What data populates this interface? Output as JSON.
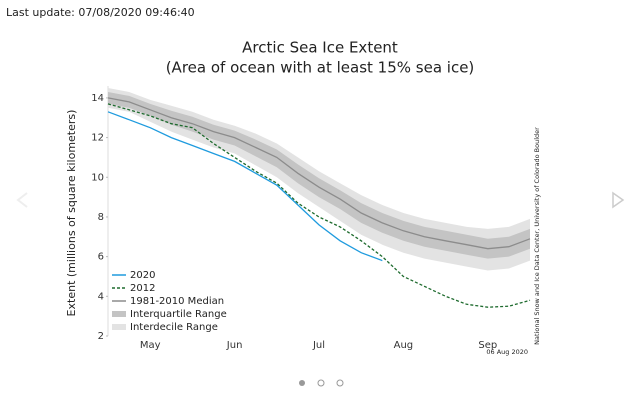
{
  "header": {
    "last_update": "Last update: 07/08/2020 09:46:40"
  },
  "chart_data": {
    "type": "line",
    "title": "Arctic Sea Ice Extent",
    "subtitle": "(Area of ocean with at least 15% sea ice)",
    "y_label": "Extent (millions of square kilometers)",
    "credit": "National Snow and Ice Data Center, University of Colorado Boulder",
    "date_stamp": "06 Aug 2020",
    "categories": [
      null,
      null,
      "May",
      null,
      null,
      null,
      "Jun",
      null,
      null,
      null,
      "Jul",
      null,
      null,
      null,
      "Aug",
      null,
      null,
      null,
      "Sep",
      null,
      null
    ],
    "ylim": [
      2,
      14.6
    ],
    "yticks": [
      2,
      4,
      6,
      8,
      10,
      12,
      14
    ],
    "grid": false,
    "legend": "lower-left",
    "series": [
      {
        "name": "2020",
        "color": "#1f9bde",
        "values": [
          13.3,
          12.9,
          12.5,
          12.0,
          11.6,
          11.2,
          10.8,
          10.2,
          9.6,
          8.6,
          7.6,
          6.8,
          6.2,
          5.8,
          null,
          null,
          null,
          null,
          null,
          null,
          null
        ]
      },
      {
        "name": "2012",
        "color": "#1e6b2e",
        "dashed": true,
        "values": [
          13.7,
          13.4,
          13.1,
          12.7,
          12.5,
          11.7,
          11.0,
          10.3,
          9.7,
          8.7,
          8.0,
          7.5,
          6.8,
          6.0,
          5.0,
          4.5,
          4.0,
          3.6,
          3.45,
          3.5,
          3.8
        ]
      },
      {
        "name": "1981-2010 Median",
        "color": "#8c8c8c",
        "values": [
          14.0,
          13.8,
          13.4,
          13.0,
          12.7,
          12.3,
          12.0,
          11.5,
          11.0,
          10.2,
          9.5,
          8.9,
          8.2,
          7.7,
          7.3,
          7.0,
          6.8,
          6.6,
          6.4,
          6.5,
          6.9
        ]
      },
      {
        "name": "Interquartile Range",
        "color": "#c4c4c4",
        "band": true,
        "upper": [
          14.3,
          14.1,
          13.7,
          13.35,
          13.05,
          12.65,
          12.35,
          11.9,
          11.4,
          10.65,
          9.95,
          9.35,
          8.7,
          8.2,
          7.8,
          7.5,
          7.3,
          7.1,
          6.9,
          7.0,
          7.4
        ],
        "lower": [
          13.7,
          13.5,
          13.1,
          12.65,
          12.3,
          11.9,
          11.6,
          11.05,
          10.5,
          9.7,
          9.0,
          8.4,
          7.7,
          7.2,
          6.8,
          6.5,
          6.3,
          6.1,
          5.9,
          6.0,
          6.4
        ]
      },
      {
        "name": "Interdecile Range",
        "color": "#e3e3e3",
        "band": true,
        "upper": [
          14.5,
          14.3,
          13.9,
          13.6,
          13.3,
          12.9,
          12.6,
          12.2,
          11.7,
          11.0,
          10.3,
          9.7,
          9.1,
          8.6,
          8.2,
          7.9,
          7.7,
          7.5,
          7.4,
          7.5,
          7.9
        ],
        "lower": [
          13.5,
          13.3,
          12.8,
          12.3,
          11.9,
          11.5,
          11.2,
          10.6,
          10.0,
          9.2,
          8.5,
          7.8,
          7.1,
          6.6,
          6.2,
          5.9,
          5.7,
          5.5,
          5.3,
          5.4,
          5.8
        ]
      }
    ]
  }
}
